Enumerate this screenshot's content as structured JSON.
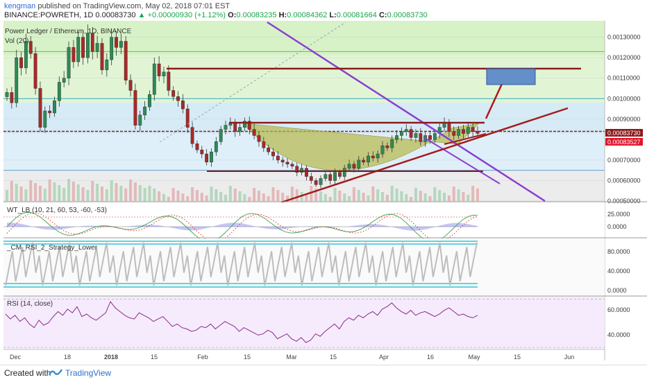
{
  "header": {
    "user": "kengman",
    "published": "published on TradingView.com, May 02, 2018 07:01 EST",
    "symbol": "BINANCE:POWRETH, 1D",
    "price": "0.00083730",
    "change": "+0.00000930 (+1.12%)",
    "o_label": "O:",
    "o": "0.00083235",
    "h_label": "H:",
    "h": "0.00084362",
    "l_label": "L:",
    "l": "0.00081664",
    "c_label": "C:",
    "c": "0.00083730"
  },
  "chart_data": [
    {
      "type": "candlestick",
      "title": "Power Ledger / Ethereum, 1D, BINANCE",
      "sub_label": "Vol (20)",
      "y_ticks": [
        "0.00130000",
        "0.00120000",
        "0.00110000",
        "0.00100000",
        "0.00090000",
        "0.00070000",
        "0.00060000",
        "0.00050000"
      ],
      "ylim": [
        0.0005,
        0.00138
      ],
      "price_label": "0.00083730",
      "price_label_2": "0.00083527",
      "fib_levels": [
        0.00123,
        0.001,
        0.00084,
        0.00065
      ],
      "closes": [
        0.00103,
        0.00098,
        0.0012,
        0.00115,
        0.00128,
        0.00122,
        0.00105,
        0.00086,
        0.00094,
        0.00093,
        0.00099,
        0.00108,
        0.0011,
        0.00125,
        0.00118,
        0.0013,
        0.0012,
        0.00132,
        0.00123,
        0.00127,
        0.00114,
        0.00119,
        0.0013,
        0.00125,
        0.00128,
        0.00109,
        0.00104,
        0.00087,
        0.00092,
        0.00096,
        0.00102,
        0.00117,
        0.00111,
        0.00113,
        0.00104,
        0.00101,
        0.00099,
        0.00095,
        0.00086,
        0.00078,
        0.00075,
        0.00073,
        0.00069,
        0.00074,
        0.00079,
        0.00085,
        0.00087,
        0.00088,
        0.00084,
        0.00086,
        0.00089,
        0.00085,
        0.00082,
        0.00079,
        0.00076,
        0.00074,
        0.00072,
        0.0007,
        0.00069,
        0.00068,
        0.00067,
        0.00064,
        0.00066,
        0.00062,
        0.0006,
        0.00058,
        0.00061,
        0.00063,
        0.0006,
        0.00064,
        0.00062,
        0.00066,
        0.00068,
        0.00066,
        0.0007,
        0.00069,
        0.00072,
        0.00071,
        0.00073,
        0.00077,
        0.00076,
        0.0008,
        0.00082,
        0.00084,
        0.00085,
        0.00081,
        0.00083,
        0.00079,
        0.00082,
        0.0008,
        0.00083,
        0.00086,
        0.00088,
        0.00084,
        0.00082,
        0.00085,
        0.00083,
        0.00086,
        0.00084,
        0.00083
      ]
    },
    {
      "type": "line",
      "title": "WT_LB (10, 21, 60, 53, -60, -53)",
      "y_ticks": [
        "25.0000",
        "0.0000"
      ]
    },
    {
      "type": "line",
      "title": "_CM_RSI_2_Strategy_Lower",
      "y_ticks": [
        "80.0000",
        "40.0000",
        "0.0000"
      ]
    },
    {
      "type": "line",
      "title": "RSI (14, close)",
      "y_ticks": [
        "60.0000",
        "40.0000"
      ],
      "values": [
        58,
        54,
        57,
        52,
        55,
        50,
        47,
        53,
        49,
        51,
        56,
        60,
        57,
        62,
        59,
        64,
        56,
        58,
        55,
        53,
        56,
        59,
        68,
        63,
        60,
        57,
        55,
        54,
        59,
        57,
        55,
        52,
        54,
        56,
        52,
        48,
        50,
        47,
        46,
        44,
        45,
        48,
        47,
        50,
        46,
        49,
        52,
        50,
        48,
        44,
        47,
        45,
        43,
        41,
        42,
        45,
        43,
        38,
        40,
        42,
        38,
        36,
        39,
        35,
        37,
        42,
        40,
        44,
        47,
        50,
        46,
        52,
        55,
        53,
        57,
        55,
        58,
        60,
        57,
        62,
        64,
        67,
        63,
        60,
        58,
        61,
        57,
        59,
        60,
        58,
        56,
        58,
        61,
        63,
        60,
        57,
        58,
        56,
        55,
        57
      ]
    }
  ],
  "x_ticks": [
    "Dec",
    "18",
    "2018",
    "15",
    "Feb",
    "15",
    "Mar",
    "15",
    "Apr",
    "16",
    "May",
    "15",
    "Jun"
  ],
  "footer": {
    "created": "Created with",
    "brand": "TradingView"
  }
}
